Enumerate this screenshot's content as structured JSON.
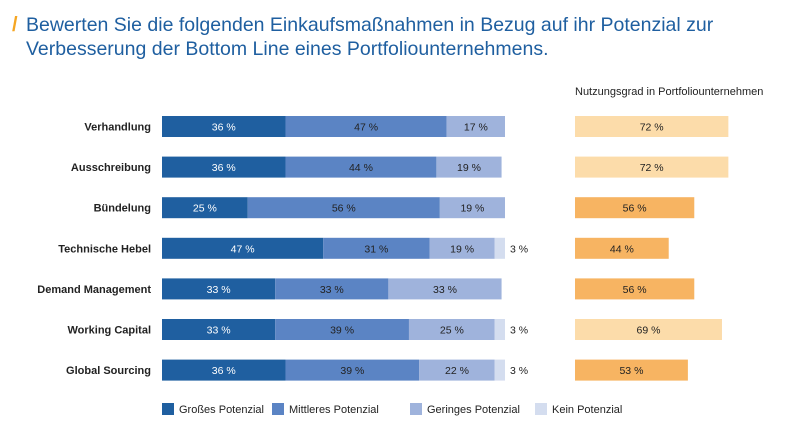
{
  "title": {
    "line1": "Bewerten Sie die folgenden Einkaufsmaßnahmen in Bezug auf ihr Potenzial zur",
    "line2": "Verbesserung der Bottom Line eines Portfoliounternehmens."
  },
  "chart_data": [
    {
      "type": "bar",
      "orientation": "horizontal",
      "stacked": true,
      "categories": [
        "Verhandlung",
        "Ausschreibung",
        "Bündelung",
        "Technische Hebel",
        "Demand Management",
        "Working Capital",
        "Global Sourcing"
      ],
      "series": [
        {
          "name": "Großes Potenzial",
          "color": "#1f5fa0",
          "values": [
            36,
            36,
            25,
            47,
            33,
            33,
            36
          ]
        },
        {
          "name": "Mittleres Potenzial",
          "color": "#5b84c4",
          "values": [
            47,
            44,
            56,
            31,
            33,
            39,
            39
          ]
        },
        {
          "name": "Geringes Potenzial",
          "color": "#9fb3dc",
          "values": [
            17,
            19,
            19,
            19,
            33,
            25,
            22
          ]
        },
        {
          "name": "Kein Potenzial",
          "color": "#d4ddef",
          "values": [
            0,
            0,
            0,
            3,
            0,
            3,
            3
          ]
        }
      ],
      "unit": "%",
      "legend_position": "bottom"
    },
    {
      "type": "bar",
      "orientation": "horizontal",
      "title": "Nutzungsgrad in Portfoliounternehmen",
      "categories": [
        "Verhandlung",
        "Ausschreibung",
        "Bündelung",
        "Technische Hebel",
        "Demand Management",
        "Working Capital",
        "Global Sourcing"
      ],
      "values": [
        72,
        72,
        56,
        44,
        56,
        69,
        53
      ],
      "colors": [
        "#fcdcaa",
        "#fcdcaa",
        "#f7b462",
        "#f7b462",
        "#f7b462",
        "#fcdcaa",
        "#f7b462"
      ],
      "unit": "%"
    }
  ]
}
